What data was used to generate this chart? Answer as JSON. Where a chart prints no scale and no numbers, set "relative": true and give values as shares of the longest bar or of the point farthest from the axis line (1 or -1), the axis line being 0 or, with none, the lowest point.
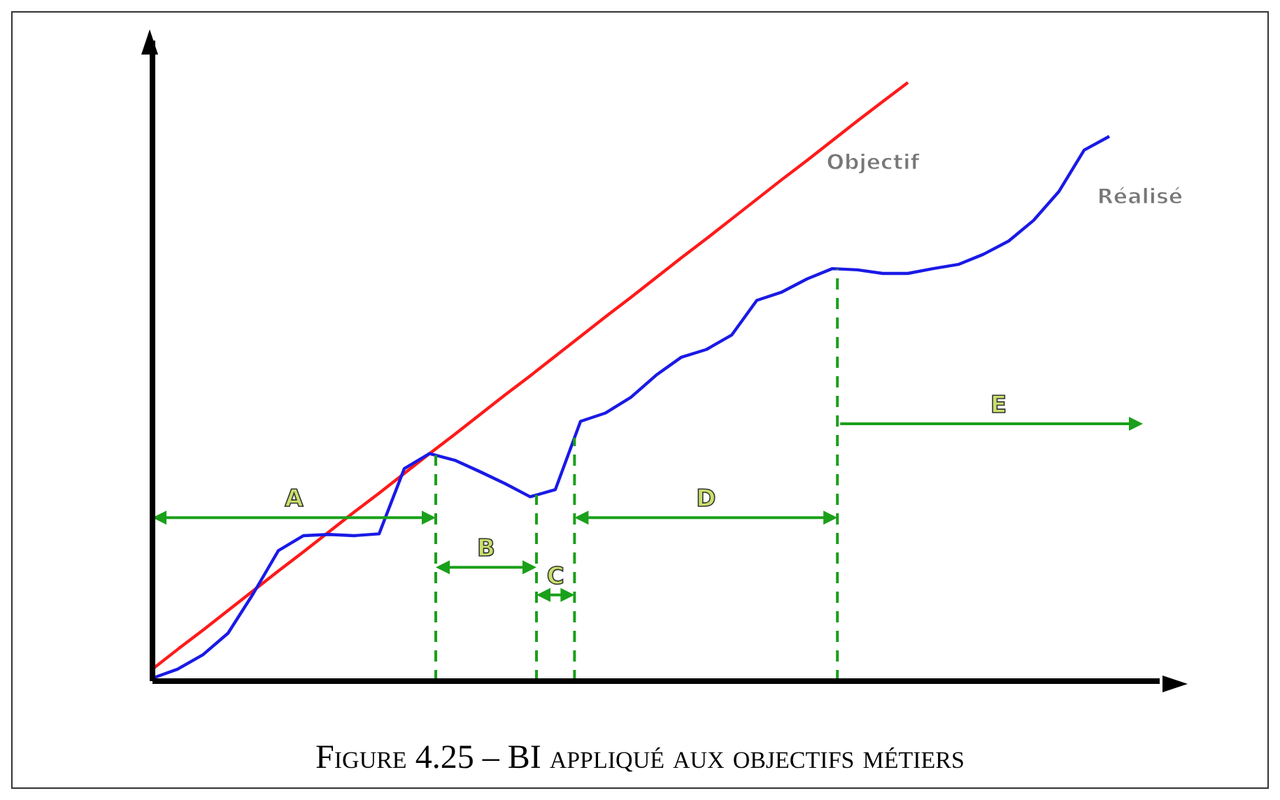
{
  "chart_data": {
    "type": "line",
    "title": "Figure 4.25 – BI appliqué aux objectifs métiers",
    "relative": true,
    "categories": [
      null,
      null,
      null,
      null,
      null,
      null,
      null,
      null,
      null,
      null,
      null,
      null,
      null,
      null,
      null,
      null,
      null,
      null,
      null,
      null,
      null,
      null,
      null,
      null,
      null,
      null,
      null,
      null,
      null,
      null,
      null,
      null,
      null,
      null,
      null,
      null,
      null,
      null,
      null,
      null,
      null
    ],
    "series": [
      {
        "name": "Objectif",
        "color": "#ff1a1a",
        "values": [
          0.02,
          0.053,
          0.085,
          0.118,
          0.151,
          0.184,
          0.216,
          0.249,
          0.282,
          0.314,
          0.347,
          0.38,
          0.412,
          0.445,
          0.478,
          0.51,
          0.543,
          0.576,
          0.609,
          0.641,
          0.674,
          0.707,
          0.739,
          0.772,
          0.805,
          0.838,
          0.87,
          0.903,
          0.936,
          0.968,
          1.0,
          null,
          null,
          null,
          null,
          null,
          null,
          null,
          null,
          null,
          null
        ]
      },
      {
        "name": "Réalisé",
        "color": "#1a1ae6",
        "values": [
          0.005,
          0.02,
          0.044,
          0.08,
          0.146,
          0.218,
          0.243,
          0.245,
          0.243,
          0.246,
          0.355,
          0.38,
          0.369,
          0.35,
          0.33,
          0.308,
          0.32,
          0.434,
          0.448,
          0.474,
          0.511,
          0.541,
          0.554,
          0.578,
          0.636,
          0.65,
          0.672,
          0.689,
          0.687,
          0.681,
          0.681,
          0.689,
          0.696,
          0.713,
          0.735,
          0.77,
          0.818,
          0.887,
          0.91,
          null,
          null
        ]
      }
    ],
    "annotations": [
      "A",
      "B",
      "C",
      "D",
      "E"
    ]
  }
}
